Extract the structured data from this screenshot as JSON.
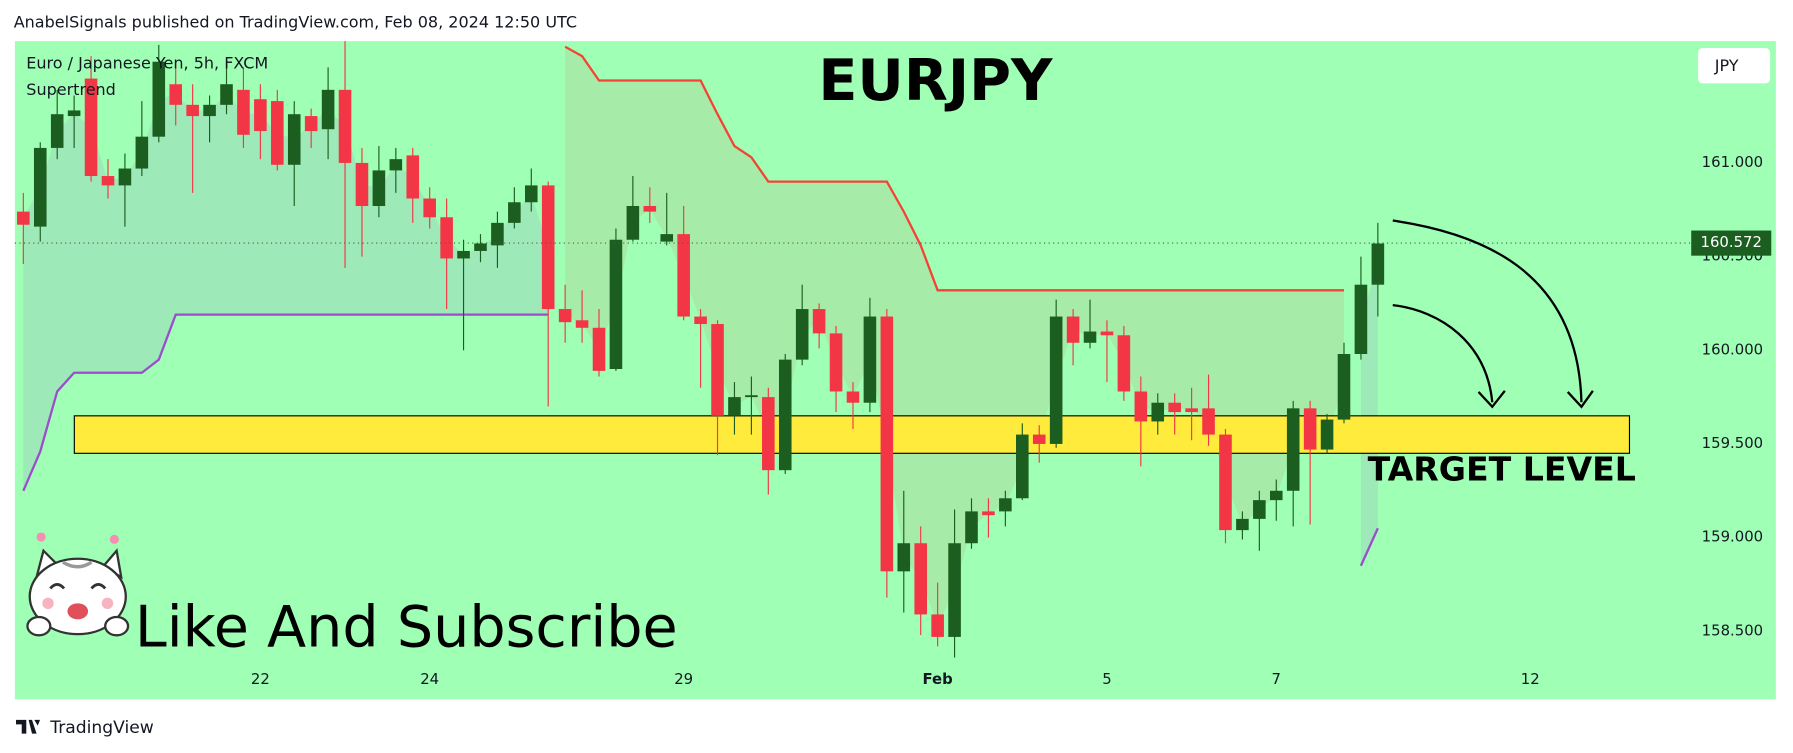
{
  "header": {
    "text": "AnabelSignals published on TradingView.com, Feb 08, 2024 12:50 UTC"
  },
  "chart_data": {
    "type": "candlestick",
    "title": "EURJPY",
    "symbol": "Euro / Japanese Yen, 5h, FXCM",
    "currency": "JPY",
    "background": "#9effb5",
    "up_color": "#1b5e20",
    "down_color": "#f23645",
    "xlim": [
      -0.5,
      97.9
    ],
    "xticks": [
      {
        "value": 14,
        "label": "22"
      },
      {
        "value": 24,
        "label": "24"
      },
      {
        "value": 39,
        "label": "29"
      },
      {
        "value": 54,
        "label": "Feb"
      },
      {
        "value": 64,
        "label": "5"
      },
      {
        "value": 74,
        "label": "7"
      },
      {
        "value": 89,
        "label": "12"
      }
    ],
    "ylim": [
      158.32,
      161.65
    ],
    "yticks": [
      {
        "value": 158.5,
        "label": "158.500"
      },
      {
        "value": 159,
        "label": "159.000"
      },
      {
        "value": 159.5,
        "label": "159.500"
      },
      {
        "value": 160,
        "label": "160.000"
      },
      {
        "value": 160.5,
        "label": "160.500"
      },
      {
        "value": 161,
        "label": "161.000"
      }
    ],
    "open": [
      160.74,
      160.66,
      161.08,
      161.25,
      161.45,
      160.93,
      160.88,
      160.97,
      161.14,
      161.42,
      161.31,
      161.25,
      161.31,
      161.39,
      161.34,
      161.33,
      160.99,
      161.25,
      161.18,
      161.39,
      161.0,
      160.77,
      160.96,
      161.04,
      160.81,
      160.71,
      160.49,
      160.53,
      160.56,
      160.68,
      160.79,
      160.88,
      160.22,
      160.16,
      160.12,
      159.9,
      160.59,
      160.77,
      160.58,
      160.62,
      160.18,
      160.14,
      159.65,
      159.75,
      159.75,
      159.36,
      159.95,
      160.22,
      160.09,
      159.78,
      159.72,
      160.18,
      158.82,
      158.97,
      158.59,
      158.47,
      158.97,
      159.14,
      159.14,
      159.21,
      159.55,
      159.5,
      160.18,
      160.04,
      160.1,
      160.08,
      159.78,
      159.62,
      159.72,
      159.69,
      159.69,
      159.55,
      159.04,
      159.1,
      159.2,
      159.25,
      159.69,
      159.47,
      159.63,
      159.98,
      160.35
    ],
    "high": [
      160.84,
      161.11,
      161.39,
      161.36,
      161.57,
      161.02,
      161.05,
      161.33,
      161.63,
      161.54,
      161.42,
      161.36,
      161.54,
      161.51,
      161.42,
      161.39,
      161.33,
      161.29,
      161.51,
      161.65,
      161.08,
      161.09,
      161.08,
      161.08,
      160.87,
      160.81,
      160.59,
      160.62,
      160.74,
      160.87,
      160.97,
      160.9,
      160.35,
      160.32,
      160.22,
      160.65,
      160.93,
      160.87,
      160.84,
      160.77,
      160.22,
      160.16,
      159.83,
      159.86,
      159.8,
      159.98,
      160.35,
      160.25,
      160.13,
      159.83,
      160.28,
      160.22,
      159.25,
      159.06,
      158.76,
      159.15,
      159.21,
      159.21,
      159.25,
      159.61,
      159.6,
      160.27,
      160.22,
      160.27,
      160.16,
      160.13,
      159.86,
      159.77,
      159.77,
      159.8,
      159.87,
      159.58,
      159.14,
      159.25,
      159.31,
      159.73,
      159.73,
      159.66,
      160.04,
      160.5,
      160.68
    ],
    "low": [
      160.46,
      160.58,
      161.02,
      161.08,
      160.9,
      160.81,
      160.66,
      160.93,
      161.11,
      161.2,
      160.84,
      161.11,
      161.26,
      161.08,
      161.02,
      160.96,
      160.77,
      161.08,
      161.02,
      160.44,
      160.5,
      160.71,
      160.84,
      160.68,
      160.65,
      160.22,
      160.0,
      160.47,
      160.44,
      160.65,
      160.74,
      159.7,
      160.04,
      160.04,
      159.86,
      159.89,
      160.58,
      160.68,
      160.56,
      160.16,
      159.8,
      159.44,
      159.55,
      159.55,
      159.23,
      159.34,
      159.92,
      160.01,
      159.67,
      159.58,
      159.67,
      158.68,
      158.6,
      158.48,
      158.42,
      158.36,
      158.94,
      159.0,
      159.06,
      159.2,
      159.4,
      159.48,
      159.92,
      160.01,
      159.83,
      159.73,
      159.38,
      159.55,
      159.55,
      159.52,
      159.49,
      158.97,
      158.99,
      158.93,
      159.09,
      159.06,
      159.07,
      159.45,
      159.61,
      159.95,
      160.18
    ],
    "close": [
      160.67,
      161.08,
      161.26,
      161.28,
      160.93,
      160.88,
      160.97,
      161.14,
      161.54,
      161.31,
      161.25,
      161.31,
      161.42,
      161.15,
      161.17,
      160.99,
      161.26,
      161.17,
      161.39,
      161.0,
      160.77,
      160.96,
      161.02,
      160.81,
      160.71,
      160.49,
      160.53,
      160.57,
      160.68,
      160.79,
      160.88,
      160.22,
      160.15,
      160.12,
      159.89,
      160.59,
      160.77,
      160.74,
      160.62,
      160.18,
      160.14,
      159.65,
      159.75,
      159.76,
      159.36,
      159.95,
      160.22,
      160.09,
      159.78,
      159.72,
      160.18,
      158.82,
      158.97,
      158.59,
      158.47,
      158.97,
      159.14,
      159.12,
      159.21,
      159.55,
      159.5,
      160.18,
      160.04,
      160.1,
      160.08,
      159.78,
      159.62,
      159.72,
      159.67,
      159.67,
      159.55,
      159.04,
      159.1,
      159.2,
      159.25,
      159.69,
      159.47,
      159.63,
      159.98,
      160.35,
      160.57
    ],
    "last_price": 160.572,
    "indicator": {
      "name": "Supertrend",
      "up_color": "#9c4dcc",
      "down_color": "#f44336",
      "values": [
        159.25,
        159.46,
        159.78,
        159.88,
        159.88,
        159.88,
        159.88,
        159.88,
        159.95,
        160.19,
        160.19,
        160.19,
        160.19,
        160.19,
        160.19,
        160.19,
        160.19,
        160.19,
        160.19,
        160.19,
        160.19,
        160.19,
        160.19,
        160.19,
        160.19,
        160.19,
        160.19,
        160.19,
        160.19,
        160.19,
        160.19,
        160.19,
        161.62,
        161.57,
        161.44,
        161.44,
        161.44,
        161.44,
        161.44,
        161.44,
        161.44,
        161.26,
        161.09,
        161.03,
        160.9,
        160.9,
        160.9,
        160.9,
        160.9,
        160.9,
        160.9,
        160.9,
        160.74,
        160.56,
        160.32,
        160.32,
        160.32,
        160.32,
        160.32,
        160.32,
        160.32,
        160.32,
        160.32,
        160.32,
        160.32,
        160.32,
        160.32,
        160.32,
        160.32,
        160.32,
        160.32,
        160.32,
        160.32,
        160.32,
        160.32,
        160.32,
        160.32,
        160.32,
        160.32,
        158.85,
        159.05
      ]
    },
    "target_zone": {
      "label": "TARGET LEVEL",
      "from": 159.45,
      "to": 159.65,
      "color": "#ffeb3b"
    },
    "annotation": "Like And Subscribe"
  },
  "footer": {
    "brand": "TradingView"
  }
}
